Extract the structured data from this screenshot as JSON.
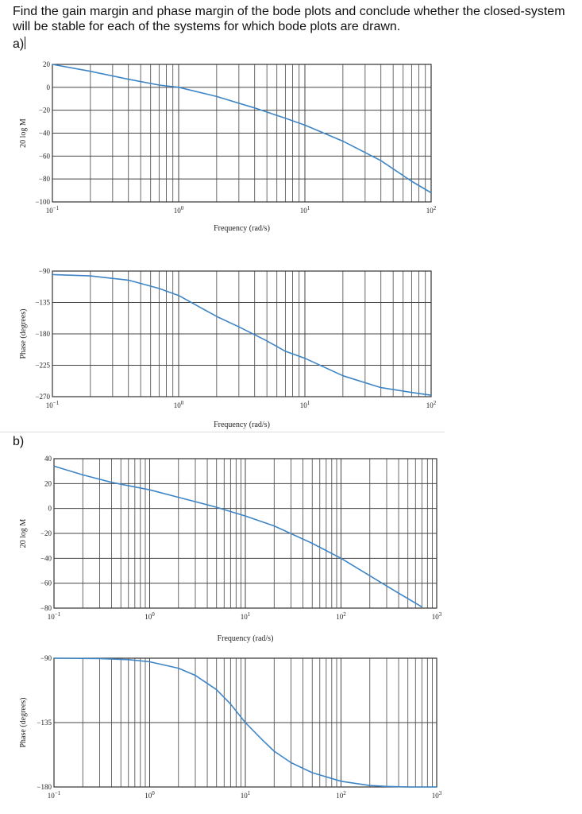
{
  "question": {
    "text": "Find the gain margin and phase margin of the bode plots and conclude whether the closed-system will be stable for each of the systems for which bode plots are drawn.",
    "part_a": "a)",
    "part_b": "b)"
  },
  "colors": {
    "curve": "#3d85c6",
    "grid": "#444444",
    "separator": "#dddddd"
  },
  "chart_data": [
    {
      "id": "a-magnitude",
      "type": "line",
      "xscale": "log",
      "xlim": [
        0.1,
        100
      ],
      "ylim": [
        -100,
        20
      ],
      "yticks": [
        20,
        0,
        -20,
        -40,
        -60,
        -80,
        -100
      ],
      "ytick_labels": [
        "20",
        "0",
        "−20",
        "−40",
        "−60",
        "−80",
        "−100"
      ],
      "xticks": [
        {
          "base": "10",
          "exp": "−1"
        },
        {
          "base": "10",
          "exp": "0"
        },
        {
          "base": "10",
          "exp": "1"
        },
        {
          "base": "10",
          "exp": "2"
        }
      ],
      "xlabel": "Frequency (rad/s)",
      "ylabel": "20 log M",
      "series": [
        {
          "x": [
            0.1,
            0.2,
            0.4,
            0.7,
            1,
            2,
            4,
            7,
            10,
            20,
            40,
            70,
            100
          ],
          "y": [
            20,
            14,
            7,
            2,
            0,
            -8,
            -18,
            -27,
            -33,
            -47,
            -64,
            -82,
            -92
          ]
        }
      ]
    },
    {
      "id": "a-phase",
      "type": "line",
      "xscale": "log",
      "xlim": [
        0.1,
        100
      ],
      "ylim": [
        -270,
        -90
      ],
      "yticks": [
        -90,
        -135,
        -180,
        -225,
        -270
      ],
      "ytick_labels": [
        "−90",
        "−135",
        "−180",
        "−225",
        "−270"
      ],
      "xticks": [
        {
          "base": "10",
          "exp": "−1"
        },
        {
          "base": "10",
          "exp": "0"
        },
        {
          "base": "10",
          "exp": "1"
        },
        {
          "base": "10",
          "exp": "2"
        }
      ],
      "xlabel": "Frequency (rad/s)",
      "ylabel": "Phase (degrees)",
      "series": [
        {
          "x": [
            0.1,
            0.2,
            0.4,
            0.7,
            1,
            2,
            3,
            5,
            7,
            10,
            20,
            40,
            70,
            100
          ],
          "y": [
            -95,
            -97,
            -103,
            -115,
            -125,
            -155,
            -170,
            -190,
            -205,
            -215,
            -240,
            -257,
            -264,
            -268
          ]
        }
      ]
    },
    {
      "id": "b-magnitude",
      "type": "line",
      "xscale": "log",
      "xlim": [
        0.1,
        1000
      ],
      "ylim": [
        -80,
        40
      ],
      "yticks": [
        40,
        20,
        0,
        -20,
        -40,
        -60,
        -80
      ],
      "ytick_labels": [
        "40",
        "20",
        "0",
        "−20",
        "−40",
        "−60",
        "−80"
      ],
      "xticks": [
        {
          "base": "10",
          "exp": "−1"
        },
        {
          "base": "10",
          "exp": "0"
        },
        {
          "base": "10",
          "exp": "1"
        },
        {
          "base": "10",
          "exp": "2"
        },
        {
          "base": "10",
          "exp": "3"
        }
      ],
      "xlabel": "Frequency (rad/s)",
      "ylabel": "20 log M",
      "series": [
        {
          "x": [
            0.1,
            0.2,
            0.4,
            1,
            2,
            5,
            10,
            20,
            50,
            100,
            200,
            400,
            700
          ],
          "y": [
            34,
            27,
            21,
            15,
            9,
            1,
            -6,
            -14,
            -28,
            -40,
            -54,
            -68,
            -79
          ]
        }
      ]
    },
    {
      "id": "b-phase",
      "type": "line",
      "xscale": "log",
      "xlim": [
        0.1,
        1000
      ],
      "ylim": [
        -180,
        -90
      ],
      "yticks": [
        -90,
        -135,
        -180
      ],
      "ytick_labels": [
        "−90",
        "−135",
        "−180"
      ],
      "xticks": [
        {
          "base": "10",
          "exp": "−1"
        },
        {
          "base": "10",
          "exp": "0"
        },
        {
          "base": "10",
          "exp": "1"
        },
        {
          "base": "10",
          "exp": "2"
        },
        {
          "base": "10",
          "exp": "3"
        }
      ],
      "xlabel": "",
      "ylabel": "Phase (degrees)",
      "series": [
        {
          "x": [
            0.1,
            0.3,
            0.6,
            1,
            2,
            3,
            5,
            7,
            10,
            15,
            20,
            30,
            50,
            100,
            200,
            300,
            500,
            1000
          ],
          "y": [
            -90,
            -90.3,
            -91,
            -92.5,
            -97,
            -102,
            -112,
            -122,
            -135,
            -147,
            -155,
            -163,
            -170,
            -176,
            -179,
            -179.6,
            -180,
            -180
          ]
        }
      ]
    }
  ]
}
